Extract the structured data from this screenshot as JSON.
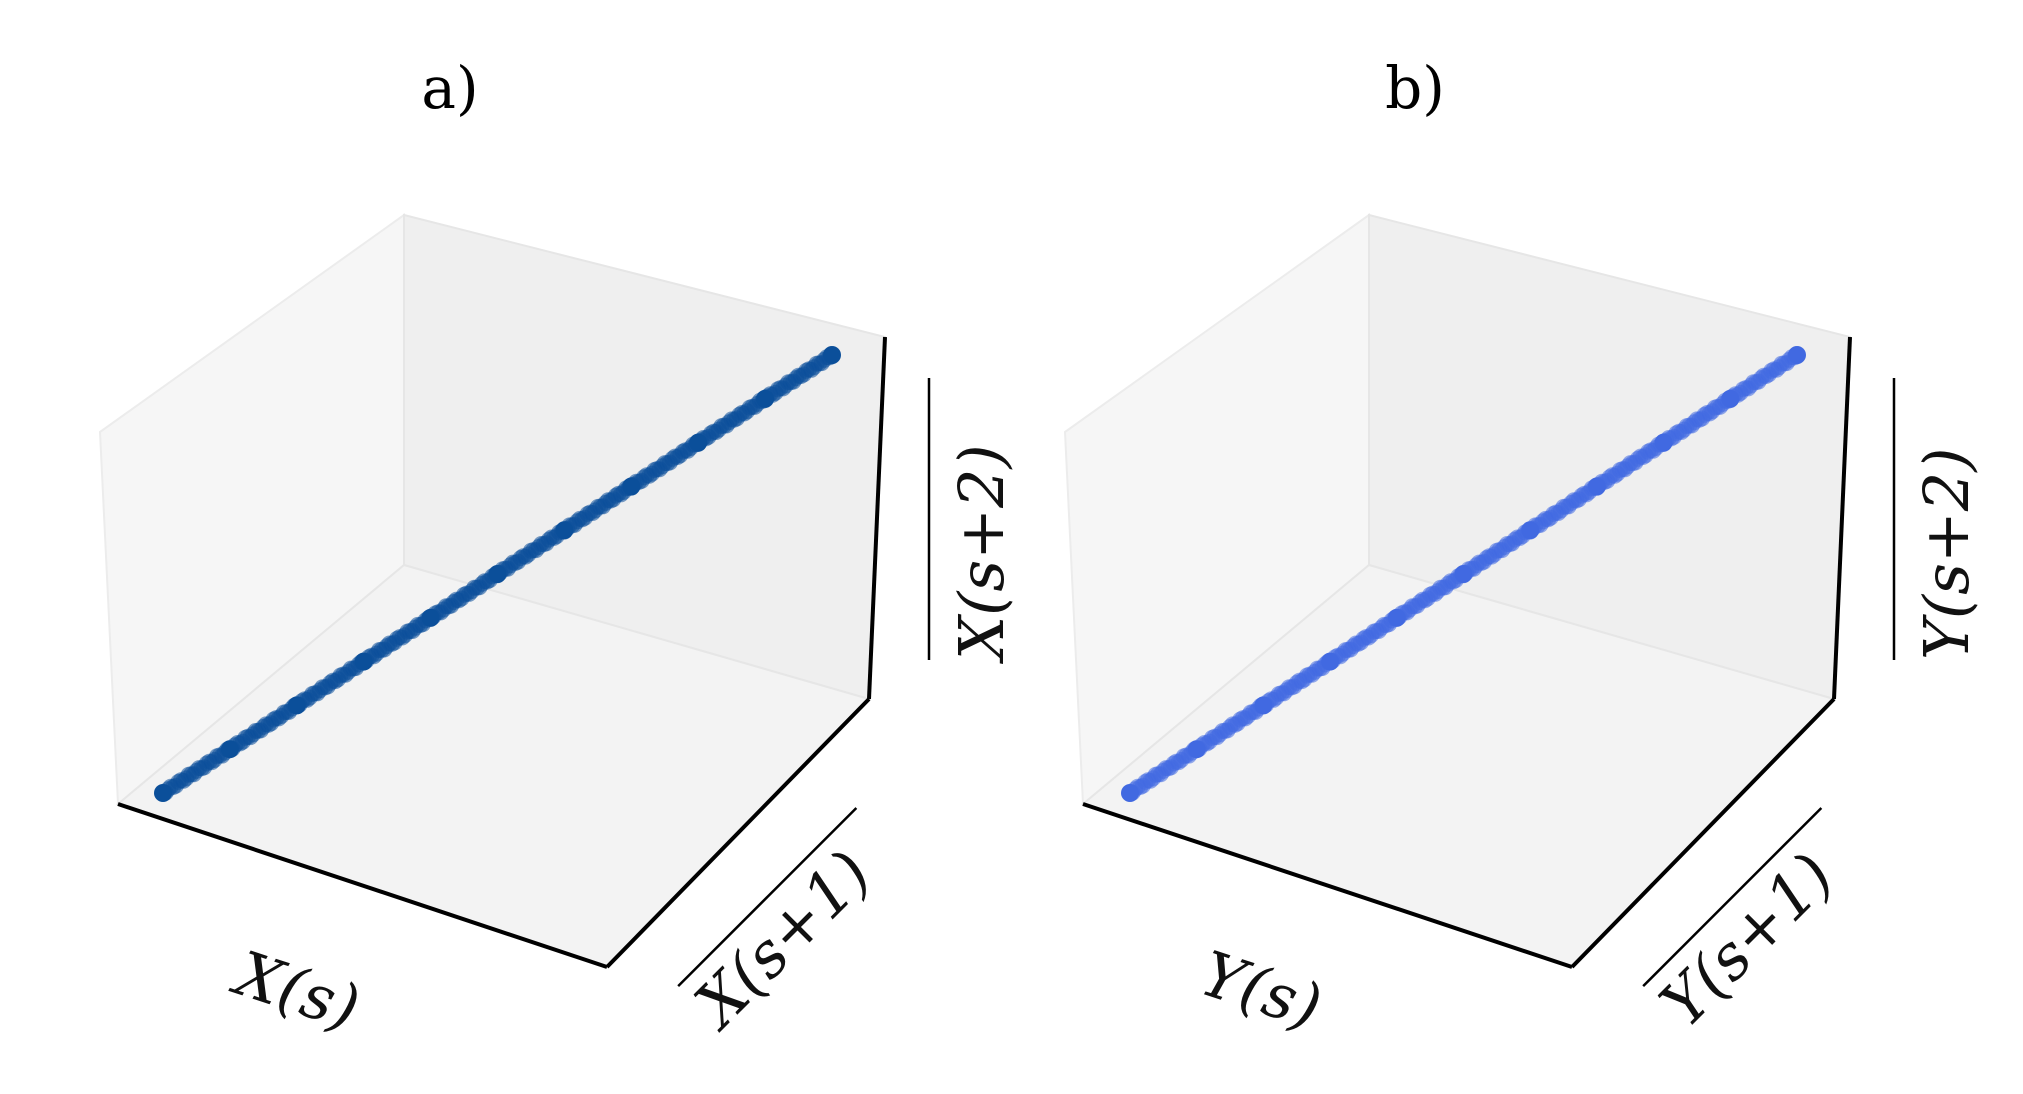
{
  "chart_data": [
    {
      "type": "scatter",
      "panel_label": "a)",
      "xlabel": "X(s)",
      "ylabel": "X(s+1)",
      "zlabel": "X(s+2)",
      "z_overline": true,
      "y_overline": true,
      "color": "#0b4f9a",
      "projection": "3d",
      "grid": false,
      "series": [
        {
          "points": [
            [
              0.0,
              0.0,
              0.0
            ],
            [
              0.1,
              0.1,
              0.1
            ],
            [
              0.2,
              0.2,
              0.2
            ],
            [
              0.3,
              0.3,
              0.3
            ],
            [
              0.4,
              0.4,
              0.4
            ],
            [
              0.5,
              0.5,
              0.5
            ],
            [
              0.6,
              0.6,
              0.6
            ],
            [
              0.7,
              0.7,
              0.7
            ],
            [
              0.8,
              0.8,
              0.8
            ],
            [
              0.9,
              0.9,
              0.9
            ],
            [
              1.0,
              1.0,
              1.0
            ]
          ]
        }
      ]
    },
    {
      "type": "scatter",
      "panel_label": "b)",
      "xlabel": "Y(s)",
      "ylabel": "Y(s+1)",
      "zlabel": "Y(s+2)",
      "z_overline": true,
      "y_overline": true,
      "color": "#4169e1",
      "projection": "3d",
      "grid": false,
      "series": [
        {
          "points": [
            [
              0.0,
              0.0,
              0.0
            ],
            [
              0.1,
              0.1,
              0.1
            ],
            [
              0.2,
              0.2,
              0.2
            ],
            [
              0.3,
              0.3,
              0.3
            ],
            [
              0.4,
              0.4,
              0.4
            ],
            [
              0.5,
              0.5,
              0.5
            ],
            [
              0.6,
              0.6,
              0.6
            ],
            [
              0.7,
              0.7,
              0.7
            ],
            [
              0.8,
              0.8,
              0.8
            ],
            [
              0.9,
              0.9,
              0.9
            ],
            [
              1.0,
              1.0,
              1.0
            ]
          ]
        }
      ]
    }
  ]
}
